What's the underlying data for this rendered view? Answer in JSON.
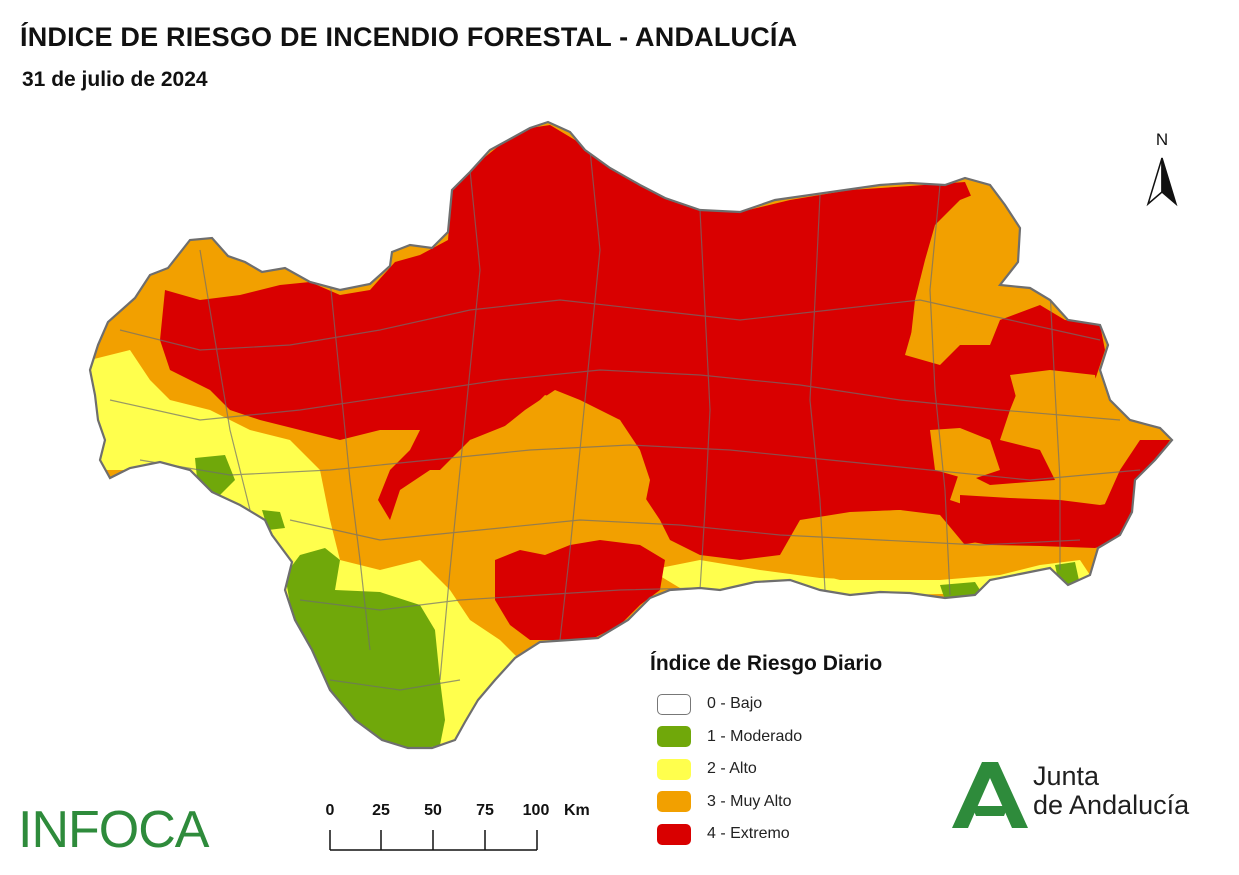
{
  "header": {
    "title": "ÍNDICE DE RIESGO DE INCENDIO FORESTAL - ANDALUCÍA",
    "date": "31 de julio de 2024"
  },
  "north_arrow": {
    "label": "N"
  },
  "legend": {
    "title": "Índice de Riesgo Diario",
    "items": [
      {
        "label": "0 - Bajo",
        "color": "#ffffff"
      },
      {
        "label": "1 - Moderado",
        "color": "#70a80a"
      },
      {
        "label": "2 - Alto",
        "color": "#ffff4d"
      },
      {
        "label": "3 - Muy Alto",
        "color": "#f2a000"
      },
      {
        "label": "4 - Extremo",
        "color": "#d90000"
      }
    ]
  },
  "scalebar": {
    "ticks": [
      "0",
      "25",
      "50",
      "75",
      "100"
    ],
    "unit": "Km"
  },
  "branding": {
    "infoca": "INFOCA",
    "junta_line1": "Junta",
    "junta_line2": "de Andalucía"
  },
  "colors": {
    "border": "#6e6e6e",
    "moderado": "#70a80a",
    "alto": "#ffff4d",
    "muy_alto": "#f2a000",
    "extremo": "#d90000",
    "brand_green": "#2e8b3b"
  }
}
